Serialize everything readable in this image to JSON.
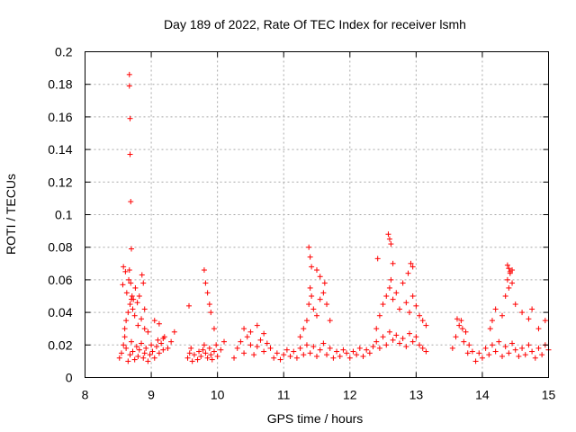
{
  "chart_data": {
    "type": "scatter",
    "title": "Day 189 of 2022, Rate Of TEC Index for receiver lsmh",
    "xlabel": "GPS time / hours",
    "ylabel": "ROTI / TECUs",
    "xlim": [
      8,
      15
    ],
    "ylim": [
      0,
      0.2
    ],
    "xticks": [
      "8",
      "9",
      "10",
      "11",
      "12",
      "13",
      "14",
      "15"
    ],
    "yticks": [
      "0",
      "0.02",
      "0.04",
      "0.06",
      "0.08",
      "0.1",
      "0.12",
      "0.14",
      "0.16",
      "0.18",
      "0.2"
    ],
    "grid": true,
    "legend": "none",
    "marker": "+",
    "color": "#ff0000",
    "series": [
      {
        "x": [
          8.52,
          8.55,
          8.58,
          8.6,
          8.62,
          8.65,
          8.68,
          8.7,
          8.72,
          8.75,
          8.78,
          8.8,
          8.82,
          8.85,
          8.88,
          8.9,
          8.92,
          8.95,
          8.98,
          9.0,
          9.02,
          9.05,
          9.08,
          9.1,
          9.12,
          9.15,
          9.18,
          9.2,
          9.25,
          9.3,
          9.35,
          8.6,
          8.62,
          8.65,
          8.68,
          8.7,
          8.72,
          8.75,
          8.8,
          8.85,
          8.9,
          8.95,
          8.57,
          8.58,
          8.61,
          8.63,
          8.66,
          8.67,
          8.69,
          8.71,
          8.73,
          8.76,
          8.79,
          8.82,
          8.86,
          8.88,
          8.9,
          9.05,
          9.12,
          9.18,
          8.67,
          8.67,
          8.68,
          8.68,
          8.69,
          8.7,
          9.55,
          9.58,
          9.6,
          9.62,
          9.65,
          9.7,
          9.72,
          9.75,
          9.78,
          9.8,
          9.82,
          9.85,
          9.88,
          9.9,
          9.92,
          9.95,
          9.98,
          10.0,
          10.05,
          10.1,
          9.57,
          9.8,
          9.82,
          9.85,
          9.88,
          9.9,
          9.95,
          10.25,
          10.3,
          10.35,
          10.4,
          10.45,
          10.5,
          10.55,
          10.6,
          10.65,
          10.7,
          10.75,
          10.8,
          10.4,
          10.5,
          10.6,
          10.7,
          10.85,
          10.9,
          10.95,
          11.0,
          11.05,
          11.1,
          11.15,
          11.2,
          11.25,
          11.3,
          11.35,
          11.4,
          11.45,
          11.5,
          11.55,
          11.6,
          11.65,
          11.7,
          11.75,
          11.8,
          11.85,
          11.9,
          11.95,
          11.25,
          11.3,
          11.35,
          11.38,
          11.4,
          11.42,
          11.45,
          11.5,
          11.55,
          11.6,
          11.62,
          11.65,
          11.7,
          11.38,
          11.4,
          11.42,
          11.5,
          11.55,
          12.0,
          12.05,
          12.1,
          12.15,
          12.2,
          12.25,
          12.3,
          12.35,
          12.4,
          12.45,
          12.5,
          12.55,
          12.6,
          12.65,
          12.7,
          12.75,
          12.8,
          12.85,
          12.9,
          12.95,
          13.0,
          13.05,
          13.1,
          13.15,
          12.4,
          12.45,
          12.5,
          12.55,
          12.6,
          12.62,
          12.65,
          12.7,
          12.75,
          12.8,
          12.85,
          12.9,
          12.95,
          13.0,
          13.05,
          13.1,
          13.15,
          12.58,
          12.6,
          12.62,
          12.42,
          12.65,
          12.88,
          12.92,
          12.95,
          13.55,
          13.6,
          13.65,
          13.7,
          13.75,
          13.8,
          13.62,
          13.68,
          13.72,
          13.78,
          13.85,
          13.9,
          13.95,
          14.0,
          14.05,
          14.1,
          14.15,
          14.2,
          14.25,
          14.3,
          14.35,
          14.4,
          14.45,
          14.5,
          14.55,
          14.6,
          14.65,
          14.7,
          14.75,
          14.8,
          14.85,
          14.9,
          14.95,
          15.0,
          14.12,
          14.15,
          14.2,
          14.3,
          14.35,
          14.38,
          14.4,
          14.42,
          14.45,
          14.5,
          14.6,
          14.7,
          14.75,
          14.85,
          14.95,
          14.38,
          14.4,
          14.42,
          14.45
        ],
        "y": [
          0.012,
          0.015,
          0.02,
          0.025,
          0.018,
          0.01,
          0.014,
          0.022,
          0.016,
          0.011,
          0.019,
          0.013,
          0.017,
          0.021,
          0.012,
          0.015,
          0.018,
          0.01,
          0.014,
          0.02,
          0.016,
          0.012,
          0.019,
          0.023,
          0.015,
          0.021,
          0.017,
          0.025,
          0.018,
          0.022,
          0.028,
          0.03,
          0.035,
          0.04,
          0.045,
          0.048,
          0.042,
          0.038,
          0.032,
          0.036,
          0.03,
          0.028,
          0.057,
          0.068,
          0.065,
          0.052,
          0.06,
          0.066,
          0.058,
          0.05,
          0.048,
          0.055,
          0.046,
          0.05,
          0.063,
          0.058,
          0.042,
          0.035,
          0.033,
          0.024,
          0.186,
          0.179,
          0.159,
          0.137,
          0.108,
          0.079,
          0.012,
          0.015,
          0.018,
          0.01,
          0.014,
          0.011,
          0.016,
          0.013,
          0.017,
          0.02,
          0.015,
          0.012,
          0.018,
          0.014,
          0.011,
          0.016,
          0.02,
          0.013,
          0.017,
          0.022,
          0.044,
          0.066,
          0.058,
          0.052,
          0.045,
          0.04,
          0.03,
          0.012,
          0.018,
          0.022,
          0.015,
          0.025,
          0.02,
          0.014,
          0.019,
          0.023,
          0.016,
          0.021,
          0.018,
          0.03,
          0.028,
          0.032,
          0.027,
          0.012,
          0.015,
          0.011,
          0.014,
          0.017,
          0.013,
          0.016,
          0.012,
          0.018,
          0.014,
          0.02,
          0.015,
          0.019,
          0.013,
          0.017,
          0.021,
          0.014,
          0.018,
          0.012,
          0.016,
          0.013,
          0.017,
          0.015,
          0.025,
          0.03,
          0.035,
          0.045,
          0.055,
          0.05,
          0.042,
          0.038,
          0.048,
          0.052,
          0.058,
          0.045,
          0.035,
          0.08,
          0.074,
          0.068,
          0.066,
          0.062,
          0.012,
          0.016,
          0.014,
          0.018,
          0.013,
          0.017,
          0.015,
          0.019,
          0.022,
          0.018,
          0.025,
          0.02,
          0.028,
          0.023,
          0.026,
          0.021,
          0.024,
          0.019,
          0.027,
          0.022,
          0.025,
          0.02,
          0.018,
          0.016,
          0.03,
          0.038,
          0.045,
          0.05,
          0.055,
          0.06,
          0.048,
          0.052,
          0.042,
          0.058,
          0.046,
          0.04,
          0.05,
          0.044,
          0.038,
          0.035,
          0.032,
          0.088,
          0.085,
          0.082,
          0.073,
          0.07,
          0.064,
          0.07,
          0.068,
          0.018,
          0.025,
          0.032,
          0.03,
          0.028,
          0.02,
          0.036,
          0.035,
          0.022,
          0.015,
          0.016,
          0.01,
          0.015,
          0.012,
          0.018,
          0.014,
          0.02,
          0.016,
          0.022,
          0.013,
          0.019,
          0.015,
          0.021,
          0.017,
          0.013,
          0.018,
          0.014,
          0.02,
          0.016,
          0.012,
          0.018,
          0.014,
          0.02,
          0.017,
          0.03,
          0.035,
          0.042,
          0.038,
          0.05,
          0.06,
          0.055,
          0.065,
          0.058,
          0.045,
          0.04,
          0.036,
          0.042,
          0.03,
          0.035,
          0.069,
          0.067,
          0.064,
          0.066
        ]
      }
    ]
  }
}
